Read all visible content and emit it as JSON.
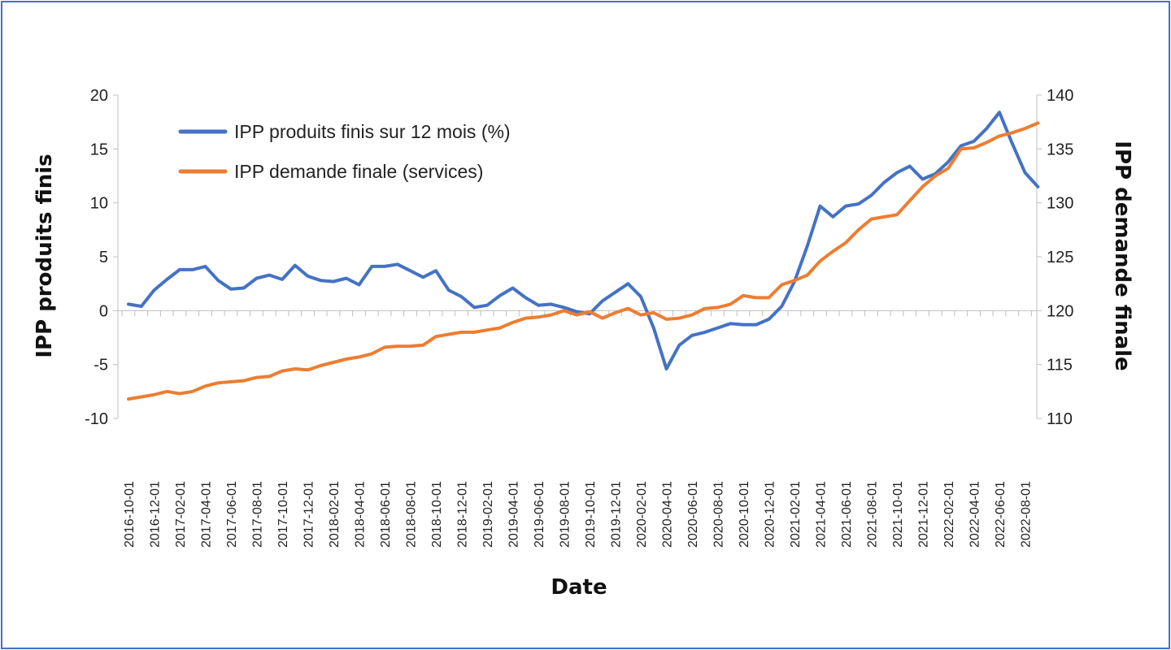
{
  "chart_data": {
    "type": "line",
    "title": "",
    "xlabel": "Date",
    "ylabel_left": "IPP produits finis",
    "ylabel_right": "IPP demande finale",
    "ylim_left": [
      -10,
      20
    ],
    "ylim_right": [
      110,
      140
    ],
    "yticks_left": [
      "20",
      "15",
      "10",
      "5",
      "0",
      "-5",
      "-10"
    ],
    "yticks_right": [
      "140",
      "135",
      "130",
      "125",
      "120",
      "115",
      "110"
    ],
    "legend_position": "top-left",
    "grid": false,
    "x": [
      "2016-10-01",
      "2016-11-01",
      "2016-12-01",
      "2017-01-01",
      "2017-02-01",
      "2017-03-01",
      "2017-04-01",
      "2017-05-01",
      "2017-06-01",
      "2017-07-01",
      "2017-08-01",
      "2017-09-01",
      "2017-10-01",
      "2017-11-01",
      "2017-12-01",
      "2018-01-01",
      "2018-02-01",
      "2018-03-01",
      "2018-04-01",
      "2018-05-01",
      "2018-06-01",
      "2018-07-01",
      "2018-08-01",
      "2018-09-01",
      "2018-10-01",
      "2018-11-01",
      "2018-12-01",
      "2019-01-01",
      "2019-02-01",
      "2019-03-01",
      "2019-04-01",
      "2019-05-01",
      "2019-06-01",
      "2019-07-01",
      "2019-08-01",
      "2019-09-01",
      "2019-10-01",
      "2019-11-01",
      "2019-12-01",
      "2020-01-01",
      "2020-02-01",
      "2020-03-01",
      "2020-04-01",
      "2020-05-01",
      "2020-06-01",
      "2020-07-01",
      "2020-08-01",
      "2020-09-01",
      "2020-10-01",
      "2020-11-01",
      "2020-12-01",
      "2021-01-01",
      "2021-02-01",
      "2021-03-01",
      "2021-04-01",
      "2021-05-01",
      "2021-06-01",
      "2021-07-01",
      "2021-08-01",
      "2021-09-01",
      "2021-10-01",
      "2021-11-01",
      "2021-12-01",
      "2022-01-01",
      "2022-02-01",
      "2022-03-01",
      "2022-04-01",
      "2022-05-01",
      "2022-06-01",
      "2022-07-01",
      "2022-08-01",
      "2022-09-01"
    ],
    "xtick_labels": [
      "2016-10-01",
      "2016-12-01",
      "2017-02-01",
      "2017-04-01",
      "2017-06-01",
      "2017-08-01",
      "2017-10-01",
      "2017-12-01",
      "2018-02-01",
      "2018-04-01",
      "2018-06-01",
      "2018-08-01",
      "2018-10-01",
      "2018-12-01",
      "2019-02-01",
      "2019-04-01",
      "2019-06-01",
      "2019-08-01",
      "2019-10-01",
      "2019-12-01",
      "2020-02-01",
      "2020-04-01",
      "2020-06-01",
      "2020-08-01",
      "2020-10-01",
      "2020-12-01",
      "2021-02-01",
      "2021-04-01",
      "2021-06-01",
      "2021-08-01",
      "2021-10-01",
      "2021-12-01",
      "2022-02-01",
      "2022-04-01",
      "2022-06-01",
      "2022-08-01"
    ],
    "series": [
      {
        "name": "IPP produits finis sur 12 mois (%)",
        "axis": "left",
        "color": "#4472c4",
        "values": [
          0.6,
          0.4,
          1.9,
          2.9,
          3.8,
          3.8,
          4.1,
          2.8,
          2.0,
          2.1,
          3.0,
          3.3,
          2.9,
          4.2,
          3.2,
          2.8,
          2.7,
          3.0,
          2.4,
          4.1,
          4.1,
          4.3,
          3.7,
          3.1,
          3.7,
          1.9,
          1.3,
          0.3,
          0.5,
          1.4,
          2.1,
          1.2,
          0.5,
          0.6,
          0.3,
          -0.1,
          -0.3,
          0.9,
          1.7,
          2.5,
          1.3,
          -1.6,
          -5.4,
          -3.2,
          -2.3,
          -2.0,
          -1.6,
          -1.2,
          -1.3,
          -1.3,
          -0.8,
          0.4,
          2.7,
          6.0,
          9.7,
          8.7,
          9.7,
          9.9,
          10.7,
          11.9,
          12.8,
          13.4,
          12.2,
          12.7,
          13.8,
          15.3,
          15.7,
          16.9,
          18.4,
          15.5,
          12.8,
          11.5
        ]
      },
      {
        "name": "IPP demande finale (services)",
        "axis": "right",
        "color": "#ed7d31",
        "values": [
          111.8,
          112.0,
          112.2,
          112.5,
          112.3,
          112.5,
          113.0,
          113.3,
          113.4,
          113.5,
          113.8,
          113.9,
          114.4,
          114.6,
          114.5,
          114.9,
          115.2,
          115.5,
          115.7,
          116.0,
          116.6,
          116.7,
          116.7,
          116.8,
          117.6,
          117.8,
          118.0,
          118.0,
          118.2,
          118.4,
          118.9,
          119.3,
          119.4,
          119.6,
          120.0,
          119.6,
          119.9,
          119.3,
          119.8,
          120.2,
          119.6,
          119.8,
          119.2,
          119.3,
          119.6,
          120.2,
          120.3,
          120.6,
          121.4,
          121.2,
          121.2,
          122.4,
          122.8,
          123.3,
          124.6,
          125.5,
          126.3,
          127.5,
          128.5,
          128.7,
          128.9,
          130.2,
          131.5,
          132.5,
          133.2,
          135.0,
          135.1,
          135.6,
          136.2,
          136.5,
          136.9,
          137.4
        ]
      }
    ]
  }
}
